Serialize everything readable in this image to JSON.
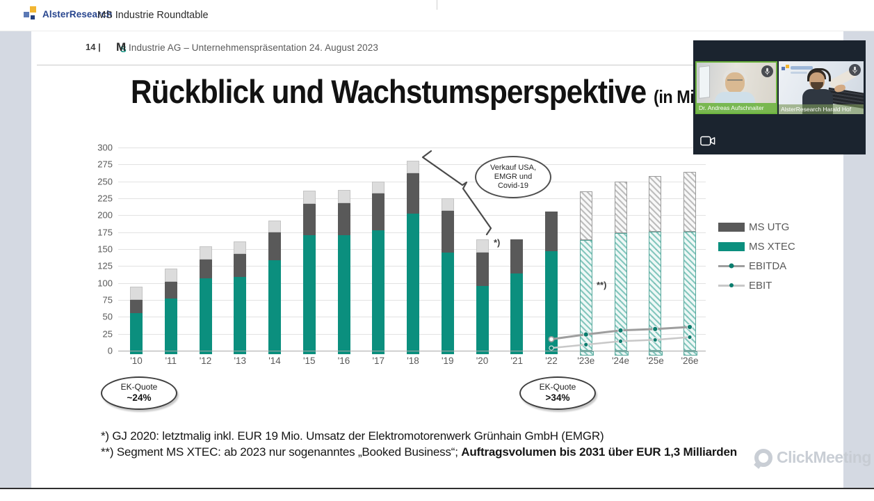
{
  "top_bar": {
    "brand": "AlsterResearch",
    "title": "MS Industrie Roundtable"
  },
  "slide": {
    "page_number": "14 |",
    "logo": {
      "m": "M",
      "s": "S"
    },
    "header_text": "Industrie AG – Unternehmenspräsentation 24. August 2023",
    "title": "Rückblick und Wachstumsperspektive",
    "title_suffix": "(in Mi",
    "bubble_lines": [
      "Verkauf USA,",
      "EMGR und",
      "Covid-19"
    ],
    "asterisk_single": "*)",
    "asterisk_double": "**)",
    "ek_quote_left": {
      "label": "EK-Quote",
      "value": "~24%"
    },
    "ek_quote_right": {
      "label": "EK-Quote",
      "value": ">34%"
    },
    "footnote1": "*) GJ 2020: letztmalig inkl. EUR 19 Mio. Umsatz der Elektromotorenwerk Grünhain GmbH (EMGR)",
    "footnote2_normal": "**) Segment MS XTEC: ab 2023 nur sogenanntes „Booked Business“; ",
    "footnote2_bold": "Auftragsvolumen bis 2031 über EUR 1,3 Milliarden"
  },
  "chart_data": {
    "type": "bar",
    "stacked": true,
    "title": "Rückblick und Wachstumsperspektive (in Mio. EUR)",
    "categories": [
      "'10",
      "'11",
      "'12",
      "'13",
      "'14",
      "'15",
      "'16",
      "'17",
      "'18",
      "'19",
      "'20",
      "'21",
      "'22",
      "'23e",
      "'24e",
      "'25e",
      "'26e"
    ],
    "series": [
      {
        "name": "MS XTEC",
        "color": "#0b8f7e",
        "values": [
          55,
          77,
          107,
          109,
          134,
          171,
          171,
          178,
          202,
          145,
          96,
          114,
          147,
          163,
          174,
          176,
          176
        ]
      },
      {
        "name": "MS UTG",
        "color": "#595959",
        "values": [
          20,
          25,
          28,
          34,
          41,
          46,
          47,
          54,
          60,
          61,
          49,
          50,
          58,
          72,
          76,
          82,
          88
        ]
      },
      {
        "name": "unlabeled-top-segment",
        "color": "#dcdcdc",
        "values": [
          20,
          19,
          19,
          18,
          17,
          19,
          19,
          18,
          18,
          19,
          19,
          0,
          0,
          0,
          0,
          0,
          0
        ]
      }
    ],
    "lines": [
      {
        "name": "EBITDA",
        "color": "#9e9e9e",
        "marker_color": "#0b7d6e",
        "values": [
          null,
          null,
          null,
          null,
          null,
          null,
          null,
          null,
          null,
          null,
          null,
          null,
          17,
          24,
          30,
          32,
          35
        ]
      },
      {
        "name": "EBIT",
        "color": "#c8c8c8",
        "marker_color": "#0b7d6e",
        "values": [
          null,
          null,
          null,
          null,
          null,
          null,
          null,
          null,
          null,
          null,
          null,
          null,
          4,
          9,
          14,
          16,
          20
        ]
      }
    ],
    "forecast_from_index": 13,
    "ylim": [
      0,
      300
    ],
    "ytick_step": 25,
    "grid": true,
    "legend_position": "right",
    "legend": [
      {
        "label": "MS UTG",
        "type": "box",
        "color": "#595959"
      },
      {
        "label": "MS XTEC",
        "type": "box",
        "color": "#0b8f7e"
      },
      {
        "label": "EBITDA",
        "type": "line",
        "color": "#9e9e9e"
      },
      {
        "label": "EBIT",
        "type": "line",
        "color": "#c8c8c8"
      }
    ]
  },
  "video_overlay": {
    "participants": [
      {
        "name": "Dr. Andreas Aufschnaiter"
      },
      {
        "name": "AlsterResearch Harald Hof"
      }
    ]
  },
  "watermark": {
    "text": "ClickMeeting"
  },
  "colors": {
    "accent_teal": "#0b8f7e",
    "dark_gray": "#595959",
    "light_segment": "#dcdcdc",
    "screen_bg": "#d4d9e2",
    "name_tag_green": "#6cb33e",
    "brand_blue": "#27458e"
  }
}
